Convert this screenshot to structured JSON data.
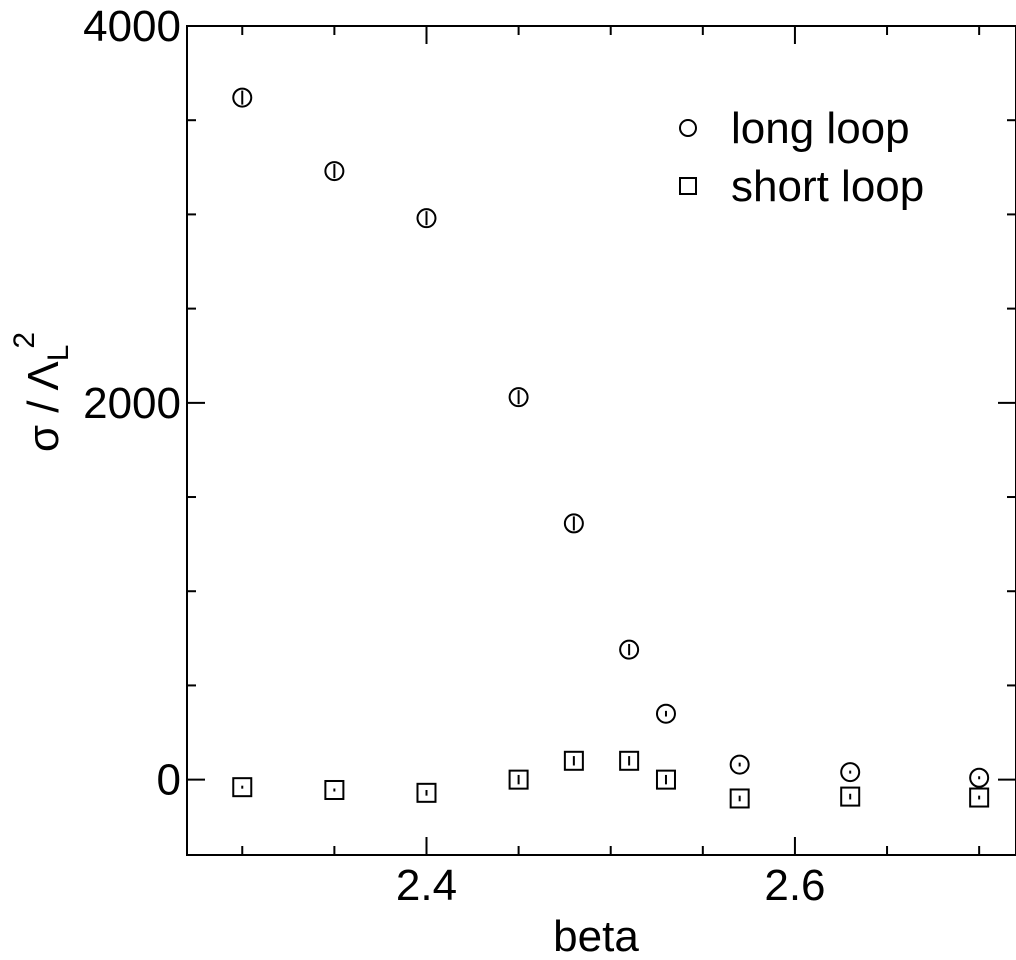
{
  "chart_data": {
    "type": "scatter",
    "xlabel": "beta",
    "ylabel": {
      "main": "σ / Λ",
      "subscript": "L",
      "superscript": "2"
    },
    "xlim": [
      2.27,
      2.72
    ],
    "ylim": [
      -400,
      4000
    ],
    "x_ticks": [
      {
        "value": 2.4,
        "label": "2.4"
      },
      {
        "value": 2.6,
        "label": "2.6"
      }
    ],
    "x_minor_ticks": [
      2.3,
      2.35,
      2.45,
      2.5,
      2.55,
      2.65,
      2.7
    ],
    "y_ticks": [
      {
        "value": 0,
        "label": "0"
      },
      {
        "value": 2000,
        "label": "2000"
      },
      {
        "value": 4000,
        "label": "4000"
      }
    ],
    "y_minor_ticks": [
      500,
      1000,
      1500,
      2500,
      3000,
      3500
    ],
    "grid": false,
    "legend_position": "top-right",
    "series": [
      {
        "name": "long loop",
        "marker": "circle",
        "color": "#000000",
        "points": [
          {
            "x": 2.3,
            "y": 3620,
            "err": 40
          },
          {
            "x": 2.35,
            "y": 3230,
            "err": 40
          },
          {
            "x": 2.4,
            "y": 2980,
            "err": 45
          },
          {
            "x": 2.45,
            "y": 2030,
            "err": 45
          },
          {
            "x": 2.48,
            "y": 1360,
            "err": 45
          },
          {
            "x": 2.51,
            "y": 690,
            "err": 30
          },
          {
            "x": 2.53,
            "y": 350,
            "err": 15
          },
          {
            "x": 2.57,
            "y": 80,
            "err": 10
          },
          {
            "x": 2.63,
            "y": 40,
            "err": 5
          },
          {
            "x": 2.7,
            "y": 10,
            "err": 5
          }
        ]
      },
      {
        "name": "short loop",
        "marker": "square",
        "color": "#000000",
        "points": [
          {
            "x": 2.3,
            "y": -40,
            "err": 5
          },
          {
            "x": 2.35,
            "y": -55,
            "err": 5
          },
          {
            "x": 2.4,
            "y": -70,
            "err": 15
          },
          {
            "x": 2.45,
            "y": 0,
            "err": 25
          },
          {
            "x": 2.48,
            "y": 100,
            "err": 25
          },
          {
            "x": 2.51,
            "y": 100,
            "err": 25
          },
          {
            "x": 2.53,
            "y": 0,
            "err": 25
          },
          {
            "x": 2.57,
            "y": -100,
            "err": 15
          },
          {
            "x": 2.63,
            "y": -90,
            "err": 15
          },
          {
            "x": 2.7,
            "y": -95,
            "err": 10
          }
        ]
      }
    ]
  }
}
